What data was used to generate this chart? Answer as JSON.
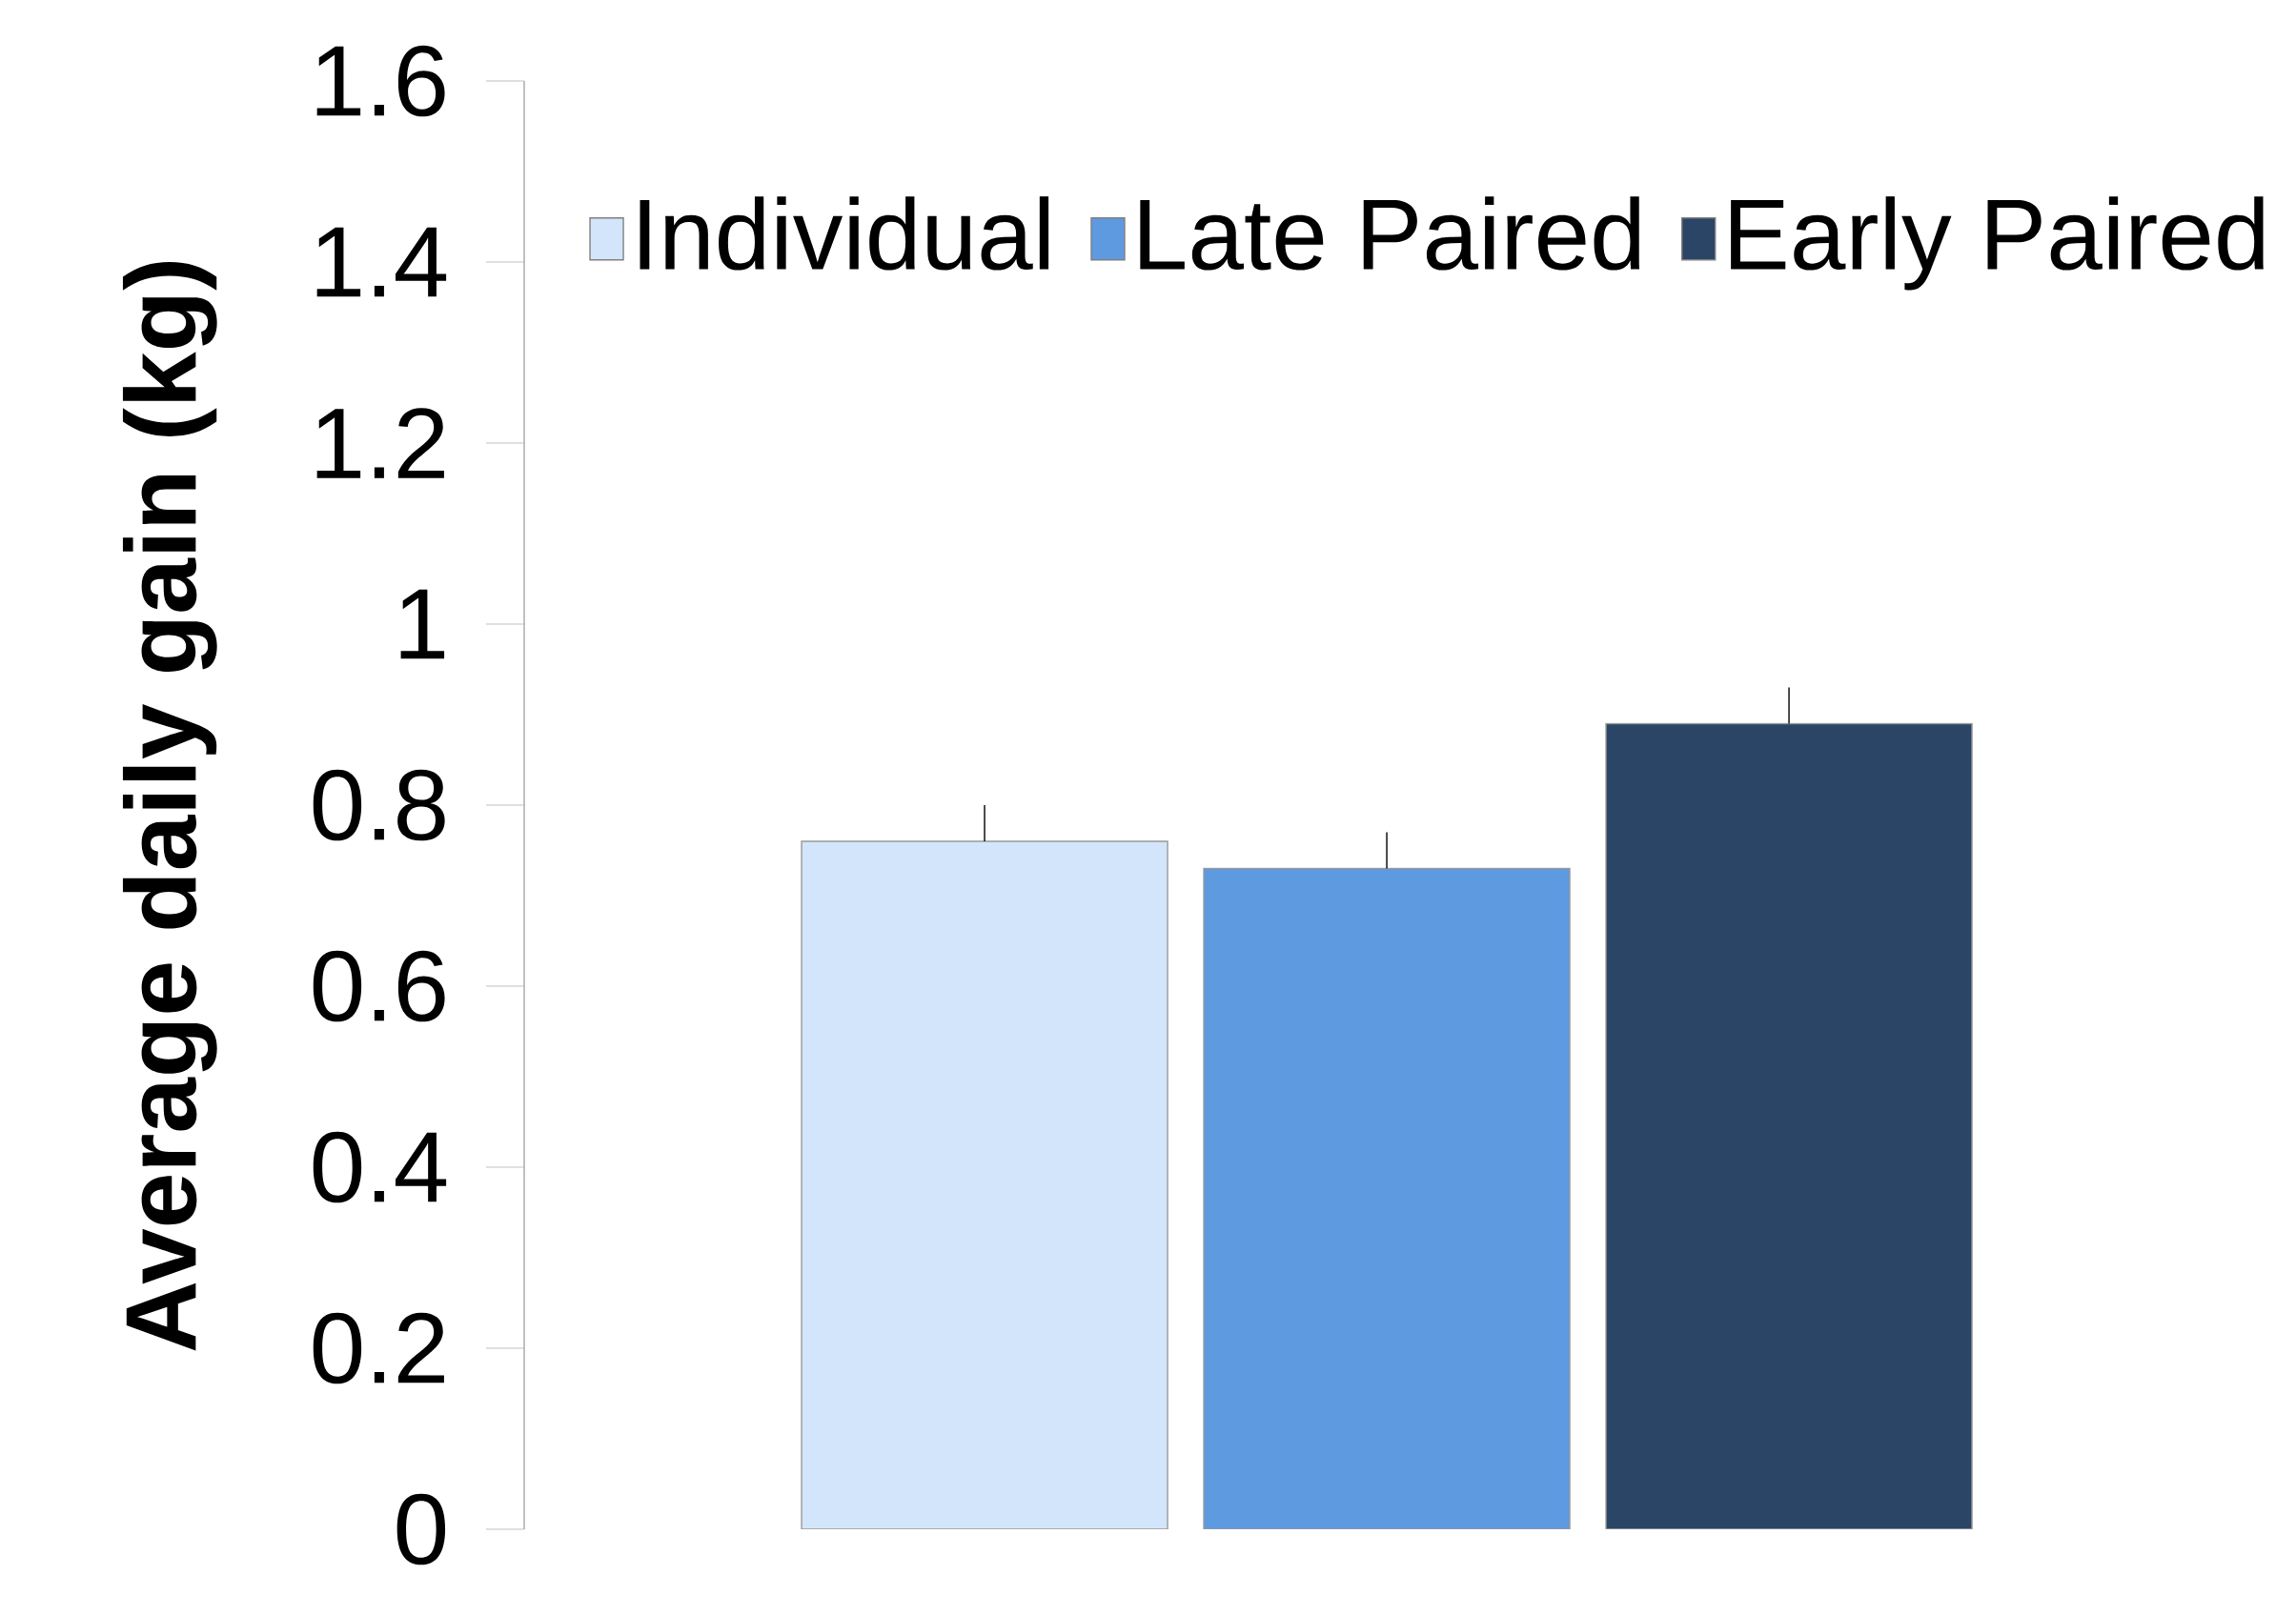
{
  "chart_data": {
    "type": "bar",
    "ylabel": "Average daily gain (kg)",
    "categories": [
      null
    ],
    "series": [
      {
        "name": "Individual",
        "color": "#d3e5fb",
        "values": [
          0.76
        ],
        "errors": [
          [
            0.76,
            0.8
          ]
        ]
      },
      {
        "name": "Late Paired",
        "color": "#5d9ae0",
        "values": [
          0.73
        ],
        "errors": [
          [
            0.73,
            0.77
          ]
        ]
      },
      {
        "name": "Early Paired",
        "color": "#2b4566",
        "values": [
          0.89
        ],
        "errors": [
          [
            0.89,
            0.93
          ]
        ]
      }
    ],
    "ylim": [
      0,
      1.6
    ],
    "yticks": [
      0,
      0.2,
      0.4,
      0.6,
      0.8,
      1,
      1.2,
      1.4,
      1.6
    ],
    "grid": false,
    "legend": "top right"
  }
}
